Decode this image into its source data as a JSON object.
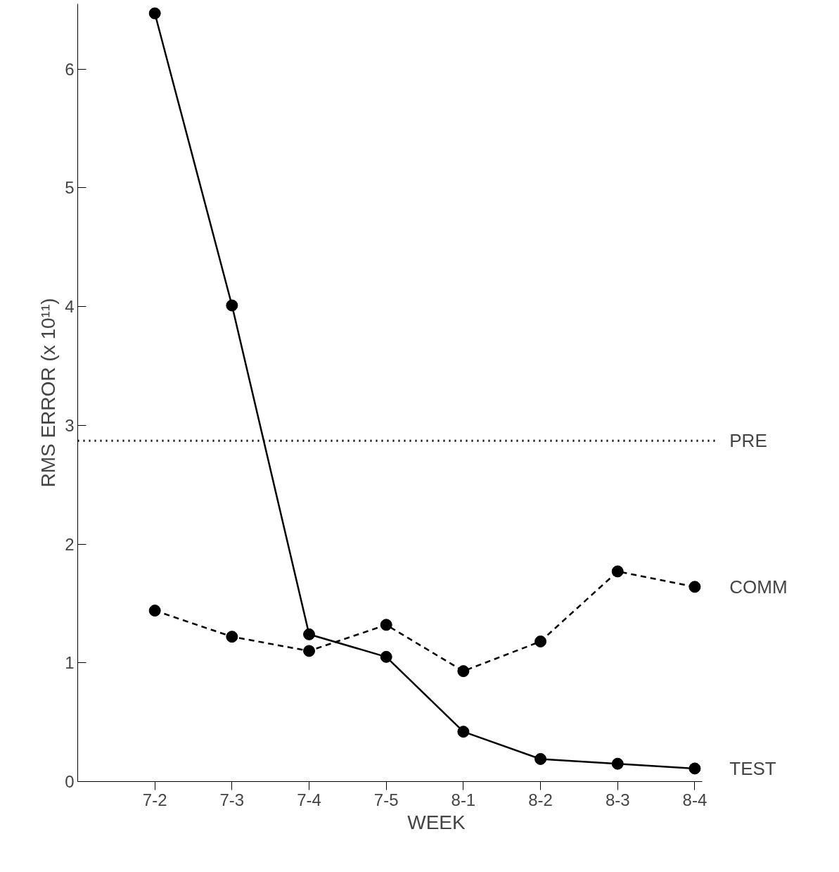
{
  "chart_data": {
    "type": "line",
    "xlabel": "WEEK",
    "ylabel": "RMS ERROR (x 10¹¹)",
    "categories": [
      "7-2",
      "7-3",
      "7-4",
      "7-5",
      "8-1",
      "8-2",
      "8-3",
      "8-4"
    ],
    "series": [
      {
        "name": "TEST",
        "color": "#000000",
        "line_style": "solid",
        "values": [
          6.47,
          4.01,
          1.24,
          1.05,
          0.42,
          0.19,
          0.15,
          0.11
        ]
      },
      {
        "name": "COMM",
        "color": "#000000",
        "line_style": "dashed",
        "values": [
          1.44,
          1.22,
          1.1,
          1.32,
          0.93,
          1.18,
          1.77,
          1.64
        ]
      }
    ],
    "ref_lines": [
      {
        "axis": "y",
        "value": 2.87,
        "label": "PRE",
        "line_style": "dotted",
        "color": "#000000"
      }
    ],
    "ylim": [
      0,
      6.55
    ],
    "yticks": [
      0,
      1,
      2,
      3,
      4,
      5,
      6
    ],
    "marker": "circle",
    "grid": false
  }
}
